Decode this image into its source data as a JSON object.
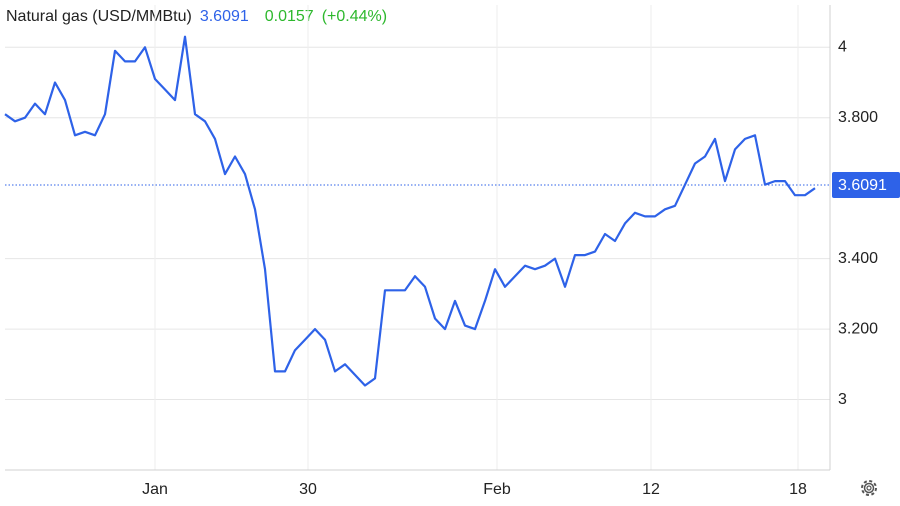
{
  "chart_data": {
    "type": "line",
    "title": "Natural gas (USD/MMBtu)",
    "last_value": 3.6091,
    "change": 0.0157,
    "change_percent": {
      "value": 0.44,
      "label": "(+0.44%)"
    },
    "x": [
      0,
      1,
      2,
      3,
      4,
      5,
      6,
      7,
      8,
      9,
      10,
      11,
      12,
      13,
      14,
      15,
      16,
      17,
      18,
      19,
      20,
      21,
      22,
      23,
      24,
      25,
      26,
      27,
      28,
      29,
      30,
      31,
      32,
      33,
      34,
      35,
      36,
      37,
      38,
      39,
      40,
      41,
      42,
      43,
      44,
      45,
      46,
      47,
      48,
      49,
      50,
      51,
      52,
      53,
      54,
      55,
      56,
      57,
      58,
      59,
      60,
      61,
      62,
      63,
      64,
      65,
      66,
      67,
      68,
      69,
      70,
      71,
      72,
      73,
      74,
      75,
      76,
      77,
      78,
      79,
      80,
      81
    ],
    "series": [
      {
        "name": "Natural gas",
        "color": "#2e62e8",
        "values": [
          3.81,
          3.79,
          3.8,
          3.84,
          3.81,
          3.9,
          3.85,
          3.75,
          3.76,
          3.75,
          3.81,
          3.99,
          3.96,
          3.96,
          4.0,
          3.91,
          3.88,
          3.85,
          4.03,
          3.81,
          3.79,
          3.74,
          3.64,
          3.69,
          3.64,
          3.54,
          3.37,
          3.08,
          3.08,
          3.14,
          3.17,
          3.2,
          3.17,
          3.08,
          3.1,
          3.07,
          3.04,
          3.06,
          3.31,
          3.31,
          3.31,
          3.35,
          3.32,
          3.23,
          3.2,
          3.28,
          3.21,
          3.2,
          3.28,
          3.37,
          3.32,
          3.35,
          3.38,
          3.37,
          3.38,
          3.4,
          3.32,
          3.41,
          3.41,
          3.42,
          3.47,
          3.45,
          3.5,
          3.53,
          3.52,
          3.52,
          3.54,
          3.55,
          3.61,
          3.67,
          3.69,
          3.74,
          3.62,
          3.71,
          3.74,
          3.75,
          3.61,
          3.62,
          3.62,
          3.58,
          3.58,
          3.6
        ]
      }
    ],
    "xlim": [
      0,
      82.5
    ],
    "xticks": [
      {
        "value": 15,
        "label": "Jan"
      },
      {
        "value": 30.3,
        "label": "30"
      },
      {
        "value": 49.2,
        "label": "Feb"
      },
      {
        "value": 64.6,
        "label": "12"
      },
      {
        "value": 79.3,
        "label": "18"
      }
    ],
    "ylim": [
      2.8,
      4.12
    ],
    "yticks": [
      3,
      {
        "value": 3.2,
        "label": "3.200"
      },
      {
        "value": 3.4,
        "label": "3.400"
      },
      {
        "value": 3.8,
        "label": "3.800"
      },
      4
    ],
    "grid": true
  }
}
